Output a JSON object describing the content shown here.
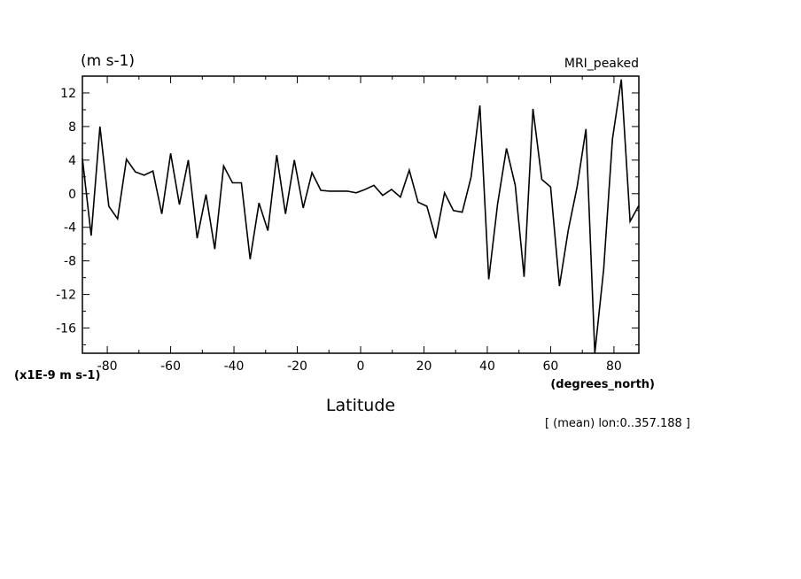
{
  "chart_data": {
    "type": "line",
    "title": "MRI_peaked",
    "units_label": "(m s-1)",
    "scale_label": "(x1E-9 m s-1)",
    "xlabel": "Latitude",
    "xunits": "(degrees_north)",
    "footer": "[ (mean) lon:0..357.188 ]",
    "xlim": [
      -87.86,
      87.86
    ],
    "ylim": [
      -19,
      14
    ],
    "xticks": [
      -80,
      -60,
      -40,
      -20,
      0,
      20,
      40,
      60,
      80
    ],
    "xtick_labels": [
      "-80",
      "-60",
      "-40",
      "-20",
      "0",
      "20",
      "40",
      "60",
      "80"
    ],
    "yticks": [
      12,
      8,
      4,
      0,
      -4,
      -8,
      -12,
      -16
    ],
    "ytick_labels": [
      "12",
      "8",
      "4",
      "0",
      "-4",
      "-8",
      "-12",
      "-16"
    ],
    "grid": false,
    "series": [
      {
        "color": "#000000",
        "x": [
          -87.86,
          -85.1,
          -82.31,
          -79.53,
          -76.74,
          -73.95,
          -71.16,
          -68.37,
          -65.58,
          -62.79,
          -60.0,
          -57.21,
          -54.42,
          -51.63,
          -48.84,
          -46.05,
          -43.26,
          -40.47,
          -37.67,
          -34.88,
          -32.09,
          -29.3,
          -26.51,
          -23.72,
          -20.93,
          -18.14,
          -15.35,
          -12.56,
          -9.77,
          -6.98,
          -4.19,
          -1.4,
          1.4,
          4.19,
          6.98,
          9.77,
          12.56,
          15.35,
          18.14,
          20.93,
          23.72,
          26.51,
          29.3,
          32.09,
          34.88,
          37.67,
          40.47,
          43.26,
          46.05,
          48.84,
          51.63,
          54.42,
          57.21,
          60.0,
          62.79,
          65.58,
          68.37,
          71.16,
          73.95,
          76.74,
          79.53,
          82.31,
          85.1,
          87.86
        ],
        "values": [
          4.2,
          -5.0,
          8.0,
          -1.5,
          -3.0,
          4.1,
          2.6,
          2.2,
          2.7,
          -2.4,
          4.8,
          -1.3,
          4.0,
          -5.3,
          -0.1,
          -6.6,
          3.3,
          1.3,
          1.3,
          -7.8,
          -1.1,
          -4.4,
          4.6,
          -2.4,
          4.0,
          -1.7,
          2.5,
          0.4,
          0.3,
          0.3,
          0.3,
          0.1,
          0.5,
          1.0,
          -0.2,
          0.5,
          -0.4,
          2.8,
          -1.0,
          -1.5,
          -5.3,
          0.1,
          -2.0,
          -2.2,
          2.0,
          10.5,
          -10.2,
          -1.2,
          5.4,
          1.0,
          -9.9,
          10.1,
          1.7,
          0.8,
          -11.0,
          -4.3,
          0.8,
          7.7,
          -19.0,
          -9.0,
          6.5,
          13.6,
          -3.3,
          -1.4
        ]
      }
    ]
  }
}
